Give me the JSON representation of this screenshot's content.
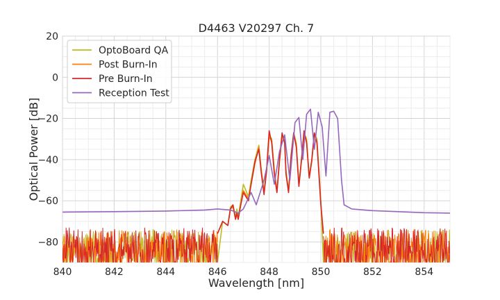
{
  "chart_data": {
    "type": "line",
    "title": "D4463 V20297 Ch. 7",
    "xlabel": "Wavelength [nm]",
    "ylabel": "Optical Power [dB]",
    "xlim": [
      840,
      855
    ],
    "ylim": [
      -90,
      20
    ],
    "xticks": [
      "840",
      "842",
      "844",
      "846",
      "848",
      "850",
      "852",
      "854"
    ],
    "yticks": [
      "20",
      "0",
      "−20",
      "−40",
      "−60",
      "−80"
    ],
    "grid": true,
    "legend_position": "top-left",
    "series": [
      {
        "name": "OptoBoard QA",
        "color": "#bcbd22",
        "x": [
          846.0,
          846.2,
          846.4,
          846.5,
          846.6,
          846.7,
          846.75,
          846.8,
          846.9,
          847.0,
          847.1,
          847.2,
          847.3,
          847.45,
          847.6,
          847.7,
          847.8,
          847.9,
          848.0,
          848.1,
          848.2,
          848.3,
          848.4,
          848.5,
          848.6,
          848.65,
          848.75,
          848.85,
          848.95,
          849.05,
          849.15,
          849.25,
          849.35,
          849.45,
          849.55,
          849.65,
          849.75,
          849.85,
          850.0,
          850.1
        ],
        "y": [
          -90,
          -70,
          -72,
          -63,
          -62,
          -68,
          -64,
          -68,
          -60,
          -52,
          -55,
          -58,
          -50,
          -40,
          -33,
          -45,
          -55,
          -45,
          -28,
          -30,
          -45,
          -55,
          -40,
          -28,
          -30,
          -45,
          -55,
          -38,
          -27,
          -32,
          -52,
          -40,
          -27,
          -30,
          -48,
          -40,
          -27,
          -30,
          -60,
          -90
        ],
        "noise_floor": [
          -90,
          -74
        ]
      },
      {
        "name": "Post Burn-In",
        "color": "#ff7f0e",
        "x": [
          846.0,
          846.2,
          846.4,
          846.5,
          846.6,
          846.7,
          846.75,
          846.8,
          846.9,
          847.0,
          847.1,
          847.2,
          847.3,
          847.45,
          847.6,
          847.7,
          847.8,
          847.9,
          848.0,
          848.1,
          848.2,
          848.3,
          848.4,
          848.5,
          848.6,
          848.65,
          848.75,
          848.85,
          848.95,
          849.05,
          849.15,
          849.25,
          849.35,
          849.45,
          849.55,
          849.65,
          849.75,
          849.85,
          850.0,
          850.1
        ],
        "y": [
          -76,
          -70,
          -72,
          -64,
          -63,
          -69,
          -66,
          -69,
          -62,
          -55,
          -57,
          -59,
          -52,
          -42,
          -34,
          -46,
          -56,
          -46,
          -29,
          -31,
          -46,
          -56,
          -41,
          -29,
          -31,
          -46,
          -56,
          -39,
          -28,
          -33,
          -53,
          -41,
          -28,
          -31,
          -49,
          -41,
          -28,
          -31,
          -61,
          -76
        ],
        "noise_floor": [
          -90,
          -74
        ]
      },
      {
        "name": "Pre Burn-In",
        "color": "#d62728",
        "x": [
          846.0,
          846.2,
          846.4,
          846.5,
          846.6,
          846.7,
          846.75,
          846.8,
          846.9,
          847.0,
          847.1,
          847.2,
          847.3,
          847.45,
          847.6,
          847.7,
          847.8,
          847.9,
          848.0,
          848.1,
          848.2,
          848.3,
          848.4,
          848.5,
          848.6,
          848.65,
          848.75,
          848.85,
          848.95,
          849.05,
          849.15,
          849.25,
          849.35,
          849.45,
          849.55,
          849.65,
          849.75,
          849.85,
          850.0,
          850.1
        ],
        "y": [
          -76,
          -70,
          -72,
          -64,
          -62,
          -69,
          -66,
          -69,
          -62,
          -56,
          -58,
          -60,
          -52,
          -41,
          -35,
          -47,
          -57,
          -45,
          -26,
          -32,
          -47,
          -56,
          -40,
          -27,
          -32,
          -47,
          -56,
          -38,
          -27,
          -34,
          -53,
          -40,
          -26,
          -32,
          -49,
          -40,
          -27,
          -32,
          -62,
          -76
        ],
        "noise_floor": [
          -90,
          -73
        ]
      },
      {
        "name": "Reception Test",
        "color": "#9467bd",
        "x": [
          840.0,
          842.0,
          844.0,
          845.5,
          846.0,
          846.5,
          846.8,
          847.0,
          847.3,
          847.5,
          847.8,
          848.0,
          848.2,
          848.4,
          848.6,
          848.8,
          849.0,
          849.15,
          849.3,
          849.45,
          849.6,
          849.75,
          849.9,
          850.05,
          850.2,
          850.35,
          850.5,
          850.65,
          850.8,
          850.9,
          851.2,
          852.0,
          853.0,
          854.0,
          855.0
        ],
        "y": [
          -65.5,
          -65.3,
          -65.0,
          -64.5,
          -64.0,
          -64.5,
          -66.0,
          -64.0,
          -56.0,
          -62.0,
          -50.0,
          -38.0,
          -52.0,
          -36.0,
          -28.0,
          -50.0,
          -22.0,
          -19.5,
          -40.0,
          -18.0,
          -15.5,
          -35.0,
          -17.0,
          -24.0,
          -48.0,
          -17.0,
          -16.5,
          -20.0,
          -50.0,
          -62.0,
          -64.0,
          -64.8,
          -65.3,
          -65.8,
          -66.0
        ]
      }
    ]
  }
}
